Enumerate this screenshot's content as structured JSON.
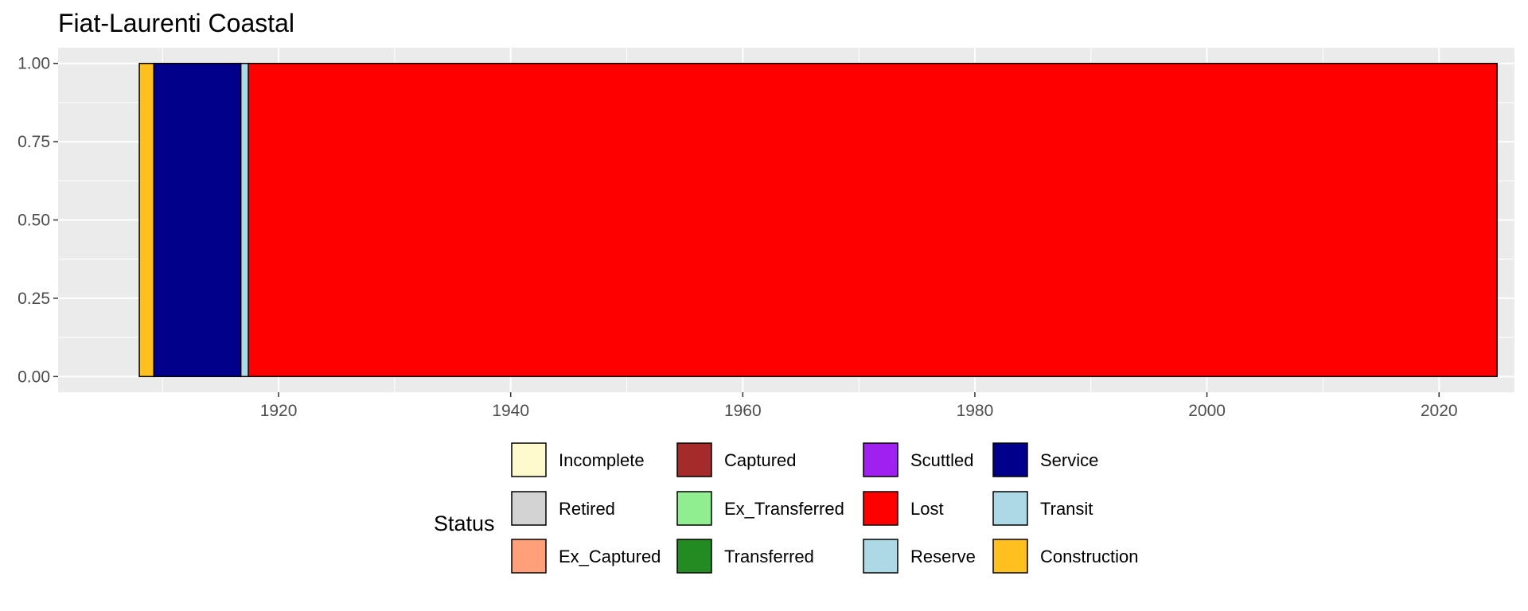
{
  "chart_data": {
    "type": "bar",
    "stacked": true,
    "title": "Fiat-Laurenti Coastal",
    "xlabel": "",
    "ylabel": "",
    "xlim": [
      1901,
      2026.5
    ],
    "ylim": [
      -0.05,
      1.05
    ],
    "x_ticks": [
      1920,
      1940,
      1960,
      1980,
      2000,
      2020
    ],
    "y_ticks": [
      0.0,
      0.25,
      0.5,
      0.75,
      1.0
    ],
    "y_tick_labels": [
      "0.00",
      "0.25",
      "0.50",
      "0.75",
      "1.00"
    ],
    "grid": true,
    "legend_position": "bottom",
    "legend": {
      "title": "Status",
      "entries": [
        {
          "label": "Incomplete",
          "color": "#FFFACD"
        },
        {
          "label": "Retired",
          "color": "#D3D3D3"
        },
        {
          "label": "Ex_Captured",
          "color": "#FFA07A"
        },
        {
          "label": "Captured",
          "color": "#A52A2A"
        },
        {
          "label": "Ex_Transferred",
          "color": "#90EE90"
        },
        {
          "label": "Transferred",
          "color": "#228B22"
        },
        {
          "label": "Scuttled",
          "color": "#A020F0"
        },
        {
          "label": "Lost",
          "color": "#FF0000"
        },
        {
          "label": "Reserve",
          "color": "#ADD8E6"
        },
        {
          "label": "Service",
          "color": "#00008B"
        },
        {
          "label": "Transit",
          "color": "#ADD8E6"
        },
        {
          "label": "Construction",
          "color": "#FFBF1F"
        }
      ]
    },
    "segments": [
      {
        "status": "Construction",
        "x_start": 1908.0,
        "x_end": 1909.25,
        "y_start": 0.0,
        "y_end": 1.0
      },
      {
        "status": "Service",
        "x_start": 1909.25,
        "x_end": 1916.75,
        "y_start": 0.0,
        "y_end": 1.0
      },
      {
        "status": "Transit",
        "x_start": 1916.75,
        "x_end": 1917.4,
        "y_start": 0.0,
        "y_end": 1.0
      },
      {
        "status": "Lost",
        "x_start": 1917.4,
        "x_end": 2025.0,
        "y_start": 0.0,
        "y_end": 1.0
      }
    ]
  }
}
